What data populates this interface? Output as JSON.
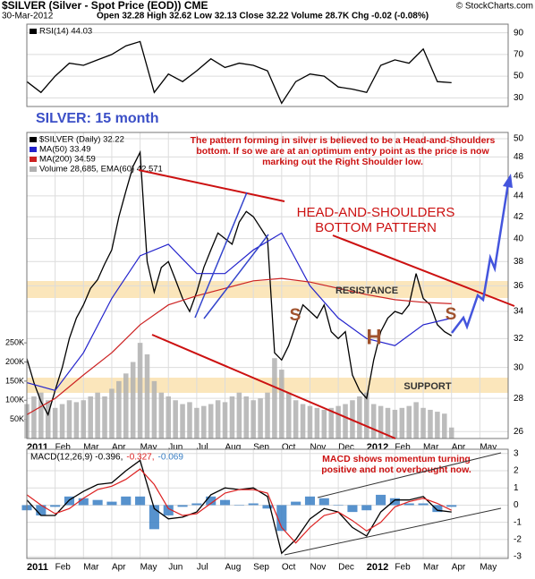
{
  "header": {
    "symbol": "$SILVER (Silver - Spot Price (EOD)) CME",
    "credit": "© StockCharts.com",
    "date": "30-Mar-2012",
    "quote": "Open 32.28 High 32.62 Low 32.13 Close 32.22 Volume 28.7K Chg -0.02 (-0.08%)"
  },
  "chart_data": [
    {
      "type": "line",
      "series": [
        {
          "name": "RSI(14) 44.03",
          "color": "#000000",
          "x": [
            0,
            0.5,
            1,
            1.5,
            2,
            2.5,
            3,
            3.5,
            4,
            4.5,
            5,
            5.5,
            6,
            6.5,
            7,
            7.5,
            8,
            8.5,
            9,
            9.5,
            10,
            10.5,
            11,
            11.5,
            12,
            12.5,
            13,
            13.5,
            14,
            14.5,
            15
          ],
          "values": [
            45,
            35,
            50,
            62,
            60,
            65,
            70,
            78,
            82,
            35,
            52,
            45,
            55,
            66,
            58,
            62,
            60,
            55,
            25,
            45,
            52,
            50,
            40,
            38,
            35,
            60,
            65,
            62,
            75,
            45,
            44
          ]
        }
      ],
      "xlim": [
        0,
        17
      ],
      "ylim": [
        22,
        98
      ],
      "yticks": [
        30,
        50,
        70,
        90
      ],
      "grid": true
    },
    {
      "type": "line",
      "title": "SILVER: 15 month",
      "log_scale": true,
      "series": [
        {
          "name": "$SILVER (Daily) 32.22",
          "color": "#000000",
          "x": [
            0,
            0.25,
            0.5,
            0.75,
            1,
            1.25,
            1.5,
            1.75,
            2,
            2.25,
            2.5,
            2.75,
            3,
            3.25,
            3.5,
            3.75,
            4,
            4.25,
            4.5,
            4.75,
            5,
            5.25,
            5.5,
            5.75,
            6,
            6.25,
            6.5,
            6.75,
            7,
            7.25,
            7.5,
            7.75,
            8,
            8.25,
            8.5,
            8.75,
            9,
            9.25,
            9.5,
            9.75,
            10,
            10.25,
            10.5,
            10.75,
            11,
            11.25,
            11.5,
            11.75,
            12,
            12.25,
            12.5,
            12.75,
            13,
            13.25,
            13.5,
            13.75,
            14,
            14.25,
            14.5,
            14.75,
            15
          ],
          "values": [
            30.6,
            29.0,
            27.8,
            27.0,
            28.5,
            30.0,
            32.0,
            33.5,
            34.5,
            35.8,
            36.5,
            37.8,
            39.0,
            42.0,
            44.5,
            47.0,
            48.5,
            38.0,
            35.5,
            37.5,
            38.0,
            36.5,
            35.0,
            34.0,
            35.5,
            37.5,
            39.0,
            40.5,
            40.0,
            39.5,
            41.5,
            42.5,
            42.0,
            41.0,
            40.0,
            31.0,
            30.5,
            31.5,
            33.0,
            34.5,
            34.0,
            33.5,
            34.5,
            32.5,
            32.0,
            32.5,
            29.5,
            28.5,
            28.0,
            30.5,
            32.5,
            33.5,
            34.0,
            33.8,
            34.5,
            37.0,
            35.0,
            34.5,
            33.0,
            32.5,
            32.2
          ]
        },
        {
          "name": "MA(50) 33.49",
          "color": "#2222cc",
          "x": [
            0,
            1,
            2,
            3,
            4,
            5,
            6,
            7,
            8,
            9,
            10,
            11,
            12,
            13,
            14,
            15
          ],
          "values": [
            29,
            28.5,
            31,
            35,
            38.5,
            39.5,
            37,
            37,
            39,
            40.5,
            36,
            33.5,
            32,
            31.5,
            33,
            33.49
          ]
        },
        {
          "name": "MA(200) 34.59",
          "color": "#cc2222",
          "x": [
            0,
            1,
            2,
            3,
            4,
            5,
            6,
            7,
            8,
            9,
            10,
            11,
            12,
            13,
            14,
            15
          ],
          "values": [
            27,
            28,
            29.5,
            31,
            33,
            34.5,
            35.2,
            35.8,
            36.4,
            36.6,
            36.3,
            35.8,
            35.3,
            34.9,
            34.7,
            34.59
          ]
        },
        {
          "name": "Volume 28,685, EMA(60) 42,571",
          "color": "#b0b0b0",
          "type": "bar",
          "axis": "y2",
          "x": [
            0,
            0.25,
            0.5,
            0.75,
            1,
            1.25,
            1.5,
            1.75,
            2,
            2.25,
            2.5,
            2.75,
            3,
            3.25,
            3.5,
            3.75,
            4,
            4.25,
            4.5,
            4.75,
            5,
            5.25,
            5.5,
            5.75,
            6,
            6.25,
            6.5,
            6.75,
            7,
            7.25,
            7.5,
            7.75,
            8,
            8.25,
            8.5,
            8.75,
            9,
            9.25,
            9.5,
            9.75,
            10,
            10.25,
            10.5,
            10.75,
            11,
            11.25,
            11.5,
            11.75,
            12,
            12.25,
            12.5,
            12.75,
            13,
            13.25,
            13.5,
            13.75,
            14,
            14.25,
            14.5,
            14.75,
            15
          ],
          "values": [
            90000,
            110000,
            120000,
            100000,
            80000,
            90000,
            100000,
            95000,
            100000,
            110000,
            120000,
            110000,
            130000,
            150000,
            170000,
            200000,
            250000,
            220000,
            150000,
            120000,
            110000,
            100000,
            90000,
            95000,
            80000,
            85000,
            90000,
            100000,
            95000,
            110000,
            120000,
            110000,
            100000,
            105000,
            120000,
            210000,
            180000,
            120000,
            100000,
            90000,
            85000,
            80000,
            75000,
            80000,
            85000,
            90000,
            100000,
            110000,
            120000,
            90000,
            85000,
            80000,
            75000,
            80000,
            85000,
            95000,
            80000,
            75000,
            70000,
            65000,
            28685
          ]
        }
      ],
      "xlim": [
        0,
        17
      ],
      "xticks": [
        {
          "value": 0,
          "label": "2011"
        },
        {
          "value": 1,
          "label": "Feb"
        },
        {
          "value": 2,
          "label": "Mar"
        },
        {
          "value": 3,
          "label": "Apr"
        },
        {
          "value": 4,
          "label": "May"
        },
        {
          "value": 5,
          "label": "Jun"
        },
        {
          "value": 6,
          "label": "Jul"
        },
        {
          "value": 7,
          "label": "Aug"
        },
        {
          "value": 8,
          "label": "Sep"
        },
        {
          "value": 9,
          "label": "Oct"
        },
        {
          "value": 10,
          "label": "Nov"
        },
        {
          "value": 11,
          "label": "Dec"
        },
        {
          "value": 12,
          "label": "2012"
        },
        {
          "value": 13,
          "label": "Feb"
        },
        {
          "value": 14,
          "label": "Mar"
        },
        {
          "value": 15,
          "label": "Apr"
        },
        {
          "value": 16,
          "label": "May"
        }
      ],
      "ylim": [
        25.6,
        50.7
      ],
      "yticks": [
        26,
        28,
        30,
        32,
        34,
        36,
        38,
        40,
        42,
        44,
        46,
        48,
        50
      ],
      "y2lim": [
        0,
        800000
      ],
      "y2ticks": [
        {
          "value": 50000,
          "label": "50K"
        },
        {
          "value": 100000,
          "label": "100K"
        },
        {
          "value": 150000,
          "label": "150K"
        },
        {
          "value": 200000,
          "label": "200K"
        },
        {
          "value": 250000,
          "label": "250K"
        }
      ],
      "grid": true,
      "annotations": {
        "note": [
          "The pattern forming in silver is believed to be a Head-and-Shoulders",
          "bottom. If so we are at an optimum entry point as the price is now",
          "marking out the Right Shoulder low."
        ],
        "pattern": [
          "HEAD-AND-SHOULDERS",
          "BOTTOM PATTERN"
        ],
        "resistance": "RESISTANCE",
        "support": "SUPPORT",
        "shoulders": [
          "S",
          "H",
          "S"
        ]
      }
    },
    {
      "type": "line",
      "series": [
        {
          "name": "MACD(12,26,9) -0.396,",
          "color": "#000000",
          "x": [
            0,
            0.5,
            1,
            1.5,
            2,
            2.5,
            3,
            3.5,
            4,
            4.5,
            5,
            5.5,
            6,
            6.5,
            7,
            7.5,
            8,
            8.5,
            9,
            9.5,
            10,
            10.5,
            11,
            11.5,
            12,
            12.5,
            13,
            13.5,
            14,
            14.5,
            15
          ],
          "values": [
            0.3,
            -0.6,
            -0.6,
            0.3,
            0.8,
            1.2,
            1.3,
            2.0,
            2.6,
            -0.2,
            -0.8,
            -0.7,
            -0.4,
            0.6,
            1.0,
            0.9,
            1.0,
            0.5,
            -2.8,
            -2.0,
            -0.8,
            -0.2,
            -0.4,
            -1.3,
            -1.8,
            -0.4,
            0.3,
            0.3,
            0.5,
            -0.3,
            -0.4
          ]
        },
        {
          "name": "-0.327,",
          "color": "#dd2222",
          "x": [
            0,
            0.5,
            1,
            1.5,
            2,
            2.5,
            3,
            3.5,
            4,
            4.5,
            5,
            5.5,
            6,
            6.5,
            7,
            7.5,
            8,
            8.5,
            9,
            9.5,
            10,
            10.5,
            11,
            11.5,
            12,
            12.5,
            13,
            13.5,
            14,
            14.5,
            15
          ],
          "values": [
            0.6,
            0,
            -0.5,
            -0.2,
            0.4,
            0.9,
            1.1,
            1.5,
            2.1,
            1.2,
            -0.2,
            -0.6,
            -0.5,
            0.1,
            0.7,
            0.9,
            0.9,
            0.7,
            -1.3,
            -2.2,
            -1.3,
            -0.6,
            -0.4,
            -0.9,
            -1.5,
            -1.0,
            -0.1,
            0.2,
            0.4,
            0.1,
            -0.3
          ]
        },
        {
          "name": "-0.069",
          "color": "#3a7fc4",
          "type": "bar",
          "x": [
            0,
            0.5,
            1,
            1.5,
            2,
            2.5,
            3,
            3.5,
            4,
            4.5,
            5,
            5.5,
            6,
            6.5,
            7,
            7.5,
            8,
            8.5,
            9,
            9.5,
            10,
            10.5,
            11,
            11.5,
            12,
            12.5,
            13,
            13.5,
            14,
            14.5,
            15
          ],
          "values": [
            -0.3,
            -0.6,
            -0.1,
            0.5,
            0.4,
            0.3,
            0.2,
            0.5,
            0.5,
            -1.4,
            -0.6,
            -0.1,
            0.1,
            0.5,
            0.3,
            0,
            0.1,
            -0.2,
            -1.5,
            0.2,
            0.5,
            0.4,
            0,
            -0.4,
            -0.3,
            0.6,
            0.4,
            0.1,
            0.1,
            -0.4,
            -0.1
          ]
        }
      ],
      "xlim": [
        0,
        17
      ],
      "xticks": [
        {
          "value": 0,
          "label": "2011"
        },
        {
          "value": 1,
          "label": "Feb"
        },
        {
          "value": 2,
          "label": "Mar"
        },
        {
          "value": 3,
          "label": "Apr"
        },
        {
          "value": 4,
          "label": "May"
        },
        {
          "value": 5,
          "label": "Jun"
        },
        {
          "value": 6,
          "label": "Jul"
        },
        {
          "value": 7,
          "label": "Aug"
        },
        {
          "value": 8,
          "label": "Sep"
        },
        {
          "value": 9,
          "label": "Oct"
        },
        {
          "value": 10,
          "label": "Nov"
        },
        {
          "value": 11,
          "label": "Dec"
        },
        {
          "value": 12,
          "label": "2012"
        },
        {
          "value": 13,
          "label": "Feb"
        },
        {
          "value": 14,
          "label": "Mar"
        },
        {
          "value": 15,
          "label": "Apr"
        },
        {
          "value": 16,
          "label": "May"
        }
      ],
      "ylim": [
        -3.1,
        3.25
      ],
      "yticks": [
        -3,
        -2,
        -1,
        0,
        1,
        2,
        3
      ],
      "grid": true,
      "annotations": {
        "note": [
          "MACD shows momentum turning",
          "positive and not overbought now."
        ]
      }
    }
  ]
}
